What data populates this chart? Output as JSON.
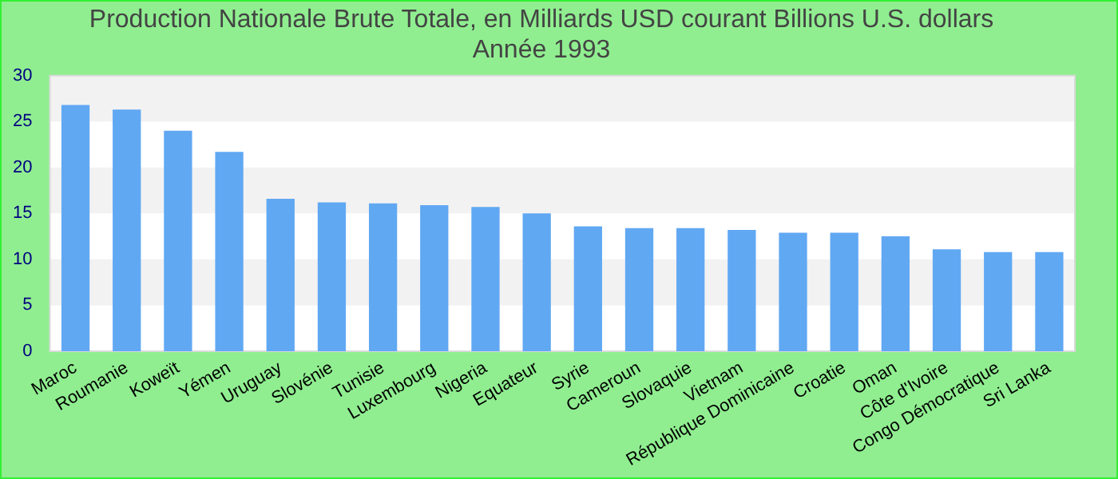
{
  "chart_data": {
    "type": "bar",
    "title": "Production Nationale Brute Totale, en Milliards USD courant Billions U.S. dollars",
    "subtitle": "Année 1993",
    "categories": [
      "Maroc",
      "Roumanie",
      "Koweït",
      "Yémen",
      "Uruguay",
      "Slovénie",
      "Tunisie",
      "Luxembourg",
      "Nigeria",
      "Equateur",
      "Syrie",
      "Cameroun",
      "Slovaquie",
      "Vietnam",
      "République Dominicaine",
      "Croatie",
      "Oman",
      "Côte d'Ivoire",
      "Congo Démocratique",
      "Sri Lanka"
    ],
    "values": [
      26.8,
      26.3,
      24.0,
      21.7,
      16.6,
      16.2,
      16.1,
      15.9,
      15.7,
      15.0,
      13.6,
      13.4,
      13.4,
      13.2,
      12.9,
      12.9,
      12.5,
      11.1,
      10.8,
      10.8
    ],
    "color": "#61a8f3",
    "ylim": [
      0,
      30
    ],
    "yticks": [
      0,
      5,
      10,
      15,
      20,
      25,
      30
    ],
    "bands": [
      {
        "axis": "y",
        "from": 5,
        "to": 10,
        "color": "#f2f2f2"
      },
      {
        "axis": "y",
        "from": 15,
        "to": 20,
        "color": "#f2f2f2"
      },
      {
        "axis": "y",
        "from": 25,
        "to": 30,
        "color": "#f2f2f2"
      }
    ],
    "legend": false
  }
}
